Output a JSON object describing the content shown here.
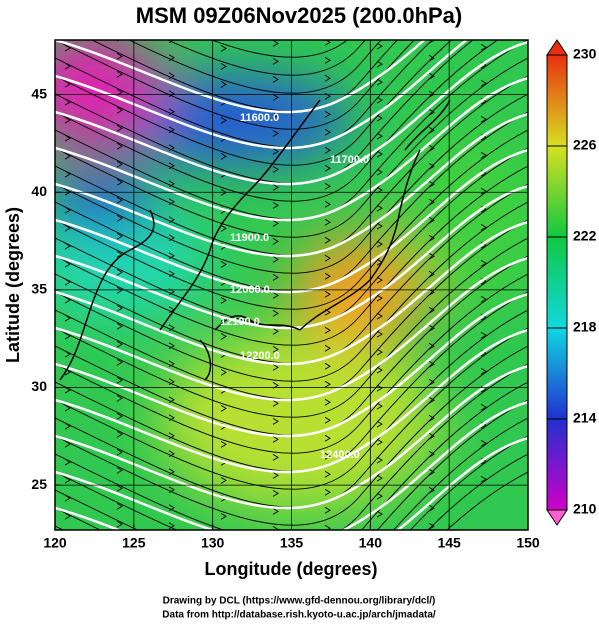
{
  "title": "MSM 09Z06Nov2025 (200.0hPa)",
  "map": {
    "xlabel": "Longitude (degrees)",
    "ylabel": "Latitude  (degrees)",
    "xlim": [
      120,
      150
    ],
    "ylim": [
      22.7,
      47.8
    ],
    "xticks": [
      120,
      125,
      130,
      135,
      140,
      145,
      150
    ],
    "yticks": [
      25,
      30,
      35,
      40,
      45
    ],
    "contour_labels": [
      "11600.0",
      "11700.0",
      "11900.0",
      "12000.0",
      "12100.0",
      "12200.0",
      "12400.0"
    ]
  },
  "colorbar": {
    "lim": [
      210,
      230
    ],
    "ticks": [
      210,
      214,
      218,
      222,
      226,
      230
    ]
  },
  "credits": [
    "Drawing by DCL (https://www.gfd-dennou.org/library/dcl/)",
    "Data from http://database.rish.kyoto-u.ac.jp/arch/jmadata/"
  ]
}
